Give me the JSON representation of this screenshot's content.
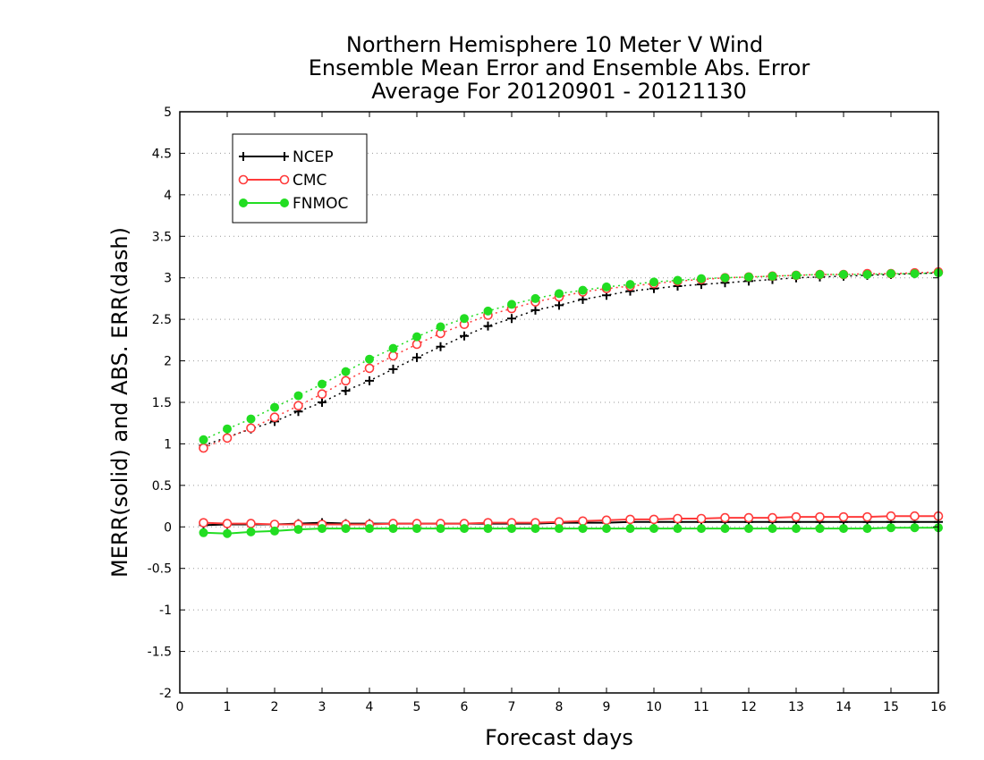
{
  "chart_data": {
    "type": "line",
    "title": "Northern Hemisphere 10 Meter V Wind",
    "subtitle": "Ensemble Mean Error and Ensemble Abs. Error",
    "subtitle2": "Average For 20120901 - 20121130",
    "xlabel": "Forecast days",
    "ylabel": "MERR(solid) and ABS. ERR(dash)",
    "xlim": [
      0,
      16
    ],
    "ylim": [
      -2,
      5
    ],
    "xticks": [
      "0",
      "1",
      "2",
      "3",
      "4",
      "5",
      "6",
      "7",
      "8",
      "9",
      "10",
      "11",
      "12",
      "13",
      "14",
      "15",
      "16"
    ],
    "yticks": [
      "-2",
      "-1.5",
      "-1",
      "-0.5",
      "0",
      "0.5",
      "1",
      "1.5",
      "2",
      "2.5",
      "3",
      "3.5",
      "4",
      "4.5",
      "5"
    ],
    "grid": "horizontal dotted",
    "legend_position": "top-left",
    "x": [
      0.5,
      1,
      1.5,
      2,
      2.5,
      3,
      3.5,
      4,
      4.5,
      5,
      5.5,
      6,
      6.5,
      7,
      7.5,
      8,
      8.5,
      9,
      9.5,
      10,
      10.5,
      11,
      11.5,
      12,
      12.5,
      13,
      13.5,
      14,
      14.5,
      15,
      15.5,
      16
    ],
    "series": [
      {
        "name": "NCEP",
        "color": "#000000",
        "marker": "plus",
        "merr": [
          0.02,
          0.03,
          0.03,
          0.03,
          0.04,
          0.05,
          0.04,
          0.04,
          0.04,
          0.04,
          0.04,
          0.04,
          0.04,
          0.04,
          0.04,
          0.05,
          0.05,
          0.05,
          0.06,
          0.06,
          0.06,
          0.06,
          0.06,
          0.06,
          0.06,
          0.06,
          0.06,
          0.06,
          0.06,
          0.06,
          0.06,
          0.06
        ],
        "abs_err": [
          0.98,
          1.08,
          1.18,
          1.27,
          1.39,
          1.5,
          1.64,
          1.76,
          1.9,
          2.04,
          2.17,
          2.3,
          2.42,
          2.51,
          2.61,
          2.67,
          2.74,
          2.79,
          2.84,
          2.87,
          2.9,
          2.92,
          2.94,
          2.96,
          2.98,
          3.0,
          3.01,
          3.02,
          3.03,
          3.04,
          3.05,
          3.06
        ]
      },
      {
        "name": "CMC",
        "color": "#ff3b3b",
        "marker": "open-circle",
        "merr": [
          0.05,
          0.04,
          0.04,
          0.03,
          0.03,
          0.03,
          0.03,
          0.03,
          0.04,
          0.04,
          0.04,
          0.04,
          0.05,
          0.05,
          0.05,
          0.06,
          0.07,
          0.08,
          0.09,
          0.09,
          0.1,
          0.1,
          0.11,
          0.11,
          0.11,
          0.12,
          0.12,
          0.12,
          0.12,
          0.13,
          0.13,
          0.13
        ],
        "abs_err": [
          0.95,
          1.07,
          1.19,
          1.32,
          1.46,
          1.6,
          1.76,
          1.91,
          2.06,
          2.2,
          2.33,
          2.44,
          2.55,
          2.63,
          2.71,
          2.77,
          2.83,
          2.87,
          2.9,
          2.93,
          2.96,
          2.98,
          3.0,
          3.01,
          3.02,
          3.03,
          3.04,
          3.04,
          3.05,
          3.05,
          3.06,
          3.07
        ]
      },
      {
        "name": "FNMOC",
        "color": "#22dd22",
        "marker": "filled-circle",
        "merr": [
          -0.07,
          -0.08,
          -0.06,
          -0.05,
          -0.03,
          -0.02,
          -0.02,
          -0.02,
          -0.02,
          -0.02,
          -0.02,
          -0.02,
          -0.02,
          -0.02,
          -0.02,
          -0.02,
          -0.02,
          -0.02,
          -0.02,
          -0.02,
          -0.02,
          -0.02,
          -0.02,
          -0.02,
          -0.02,
          -0.02,
          -0.02,
          -0.02,
          -0.02,
          -0.01,
          -0.01,
          -0.01
        ],
        "abs_err": [
          1.05,
          1.18,
          1.3,
          1.44,
          1.58,
          1.72,
          1.87,
          2.02,
          2.15,
          2.29,
          2.41,
          2.51,
          2.6,
          2.68,
          2.75,
          2.81,
          2.85,
          2.89,
          2.92,
          2.95,
          2.97,
          2.99,
          3.0,
          3.01,
          3.02,
          3.03,
          3.04,
          3.04,
          3.04,
          3.05,
          3.05,
          3.06
        ]
      }
    ]
  }
}
